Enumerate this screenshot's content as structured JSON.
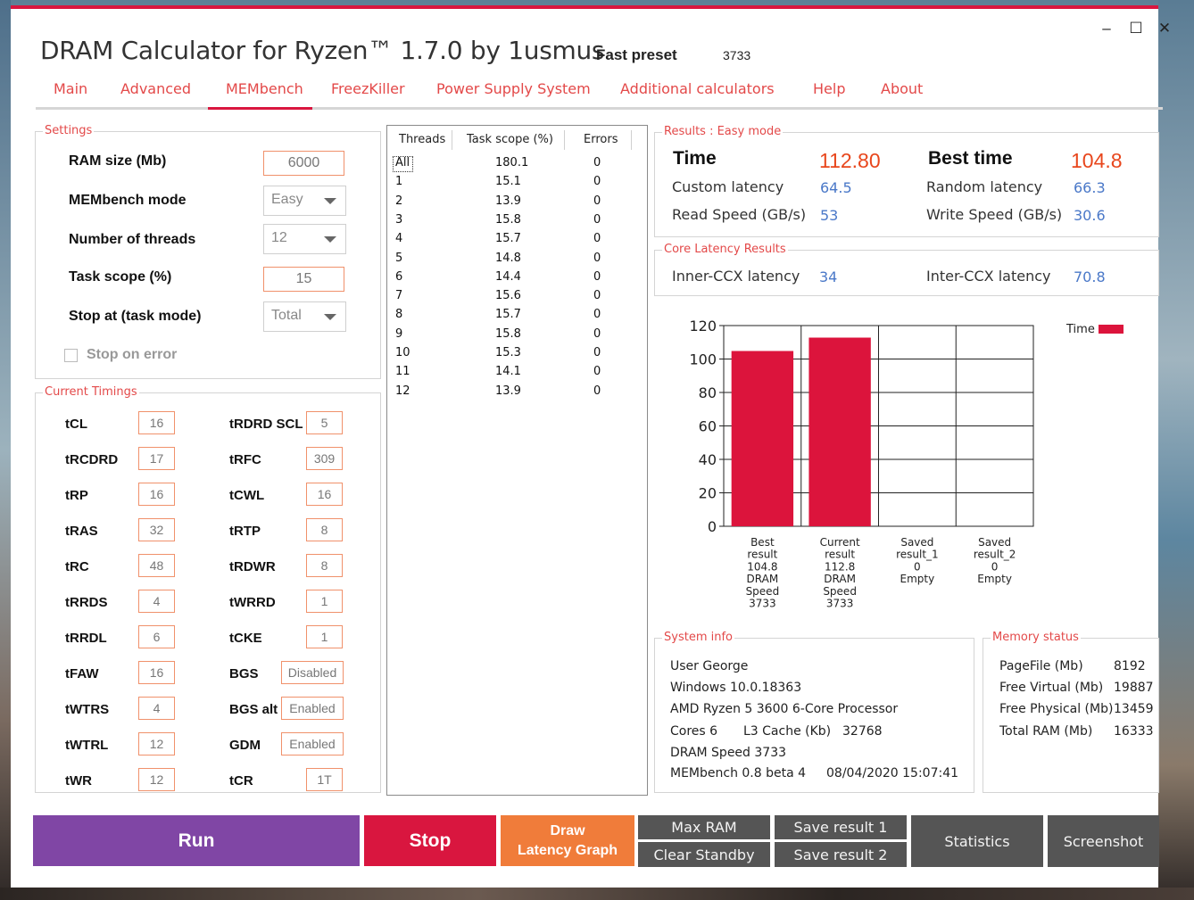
{
  "window": {
    "title": "DRAM Calculator for Ryzen™ 1.7.0 by 1usmus",
    "preset_label": "Fast preset",
    "preset_value": "3733",
    "controls": {
      "minimize": "–",
      "maximize": "☐",
      "close": "✕"
    }
  },
  "menu": [
    "Main",
    "Advanced",
    "MEMbench",
    "FreezKiller",
    "Power Supply System",
    "Additional calculators",
    "Help",
    "About"
  ],
  "menu_active": "MEMbench",
  "settings": {
    "title": "Settings",
    "ram_size_label": "RAM size (Mb)",
    "ram_size_value": "6000",
    "mode_label": "MEMbench mode",
    "mode_value": "Easy",
    "threads_label": "Number of threads",
    "threads_value": "12",
    "task_scope_label": "Task scope (%)",
    "task_scope_value": "15",
    "stop_label": "Stop at (task mode)",
    "stop_value": "Total",
    "stop_on_error_label": "Stop on error",
    "stop_on_error_checked": false
  },
  "timings": {
    "title": "Current Timings",
    "left": [
      {
        "label": "tCL",
        "value": "16"
      },
      {
        "label": "tRCDRD",
        "value": "17"
      },
      {
        "label": "tRP",
        "value": "16"
      },
      {
        "label": "tRAS",
        "value": "32"
      },
      {
        "label": "tRC",
        "value": "48"
      },
      {
        "label": "tRRDS",
        "value": "4"
      },
      {
        "label": "tRRDL",
        "value": "6"
      },
      {
        "label": "tFAW",
        "value": "16"
      },
      {
        "label": "tWTRS",
        "value": "4"
      },
      {
        "label": "tWTRL",
        "value": "12"
      },
      {
        "label": "tWR",
        "value": "12"
      }
    ],
    "right": [
      {
        "label": "tRDRD SCL",
        "value": "5"
      },
      {
        "label": "tRFC",
        "value": "309"
      },
      {
        "label": "tCWL",
        "value": "16"
      },
      {
        "label": "tRTP",
        "value": "8"
      },
      {
        "label": "tRDWR",
        "value": "8"
      },
      {
        "label": "tWRRD",
        "value": "1"
      },
      {
        "label": "tCKE",
        "value": "1"
      },
      {
        "label": "BGS",
        "value": "Disabled"
      },
      {
        "label": "BGS alt",
        "value": "Enabled"
      },
      {
        "label": "GDM",
        "value": "Enabled"
      },
      {
        "label": "tCR",
        "value": "1T"
      }
    ]
  },
  "threads_table": {
    "headers": [
      "Threads",
      "Task scope (%)",
      "Errors"
    ],
    "rows": [
      [
        "All",
        "180.1",
        "0"
      ],
      [
        "1",
        "15.1",
        "0"
      ],
      [
        "2",
        "13.9",
        "0"
      ],
      [
        "3",
        "15.8",
        "0"
      ],
      [
        "4",
        "15.7",
        "0"
      ],
      [
        "5",
        "14.8",
        "0"
      ],
      [
        "6",
        "14.4",
        "0"
      ],
      [
        "7",
        "15.6",
        "0"
      ],
      [
        "8",
        "15.7",
        "0"
      ],
      [
        "9",
        "15.8",
        "0"
      ],
      [
        "10",
        "15.3",
        "0"
      ],
      [
        "11",
        "14.1",
        "0"
      ],
      [
        "12",
        "13.9",
        "0"
      ]
    ]
  },
  "results": {
    "title": "Results : Easy mode",
    "time_label": "Time",
    "time_value": "112.80",
    "best_label": "Best time",
    "best_value": "104.8",
    "custom_latency_label": "Custom latency",
    "custom_latency_value": "64.5",
    "random_latency_label": "Random latency",
    "random_latency_value": "66.3",
    "read_label": "Read Speed (GB/s)",
    "read_value": "53",
    "write_label": "Write Speed (GB/s)",
    "write_value": "30.6"
  },
  "core_latency": {
    "title": "Core Latency Results",
    "inner_label": "Inner-CCX latency",
    "inner_value": "34",
    "inter_label": "Inter-CCX latency",
    "inter_value": "70.8"
  },
  "chart_data": {
    "type": "bar",
    "ylim": [
      0,
      120
    ],
    "yticks": [
      0,
      20,
      40,
      60,
      80,
      100,
      120
    ],
    "grid": true,
    "legend_position": "top-right",
    "series": [
      {
        "name": "Time",
        "values": [
          104.8,
          112.8,
          0,
          0
        ],
        "color": "#dc143c"
      }
    ],
    "categories": [
      [
        "Best",
        "result",
        "104.8",
        "DRAM",
        "Speed",
        "3733"
      ],
      [
        "Current",
        "result",
        "112.8",
        "DRAM",
        "Speed",
        "3733"
      ],
      [
        "Saved",
        "result_1",
        "0",
        "Empty"
      ],
      [
        "Saved",
        "result_2",
        "0",
        "Empty"
      ]
    ]
  },
  "system_info": {
    "title": "System info",
    "user": "User George",
    "os": "Windows 10.0.18363",
    "cpu": "AMD Ryzen 5 3600 6-Core Processor",
    "cores": "Cores 6",
    "l3_label": "L3 Cache (Kb)",
    "l3_value": "32768",
    "dram_speed": "DRAM Speed 3733",
    "membench": "MEMbench 0.8 beta 4",
    "datetime": "08/04/2020 15:07:41"
  },
  "memory_status": {
    "title": "Memory status",
    "rows": [
      {
        "label": "PageFile (Mb)",
        "value": "8192"
      },
      {
        "label": "Free Virtual (Mb)",
        "value": "19887"
      },
      {
        "label": "Free Physical (Mb)",
        "value": "13459"
      },
      {
        "label": "Total RAM (Mb)",
        "value": "16333"
      }
    ]
  },
  "buttons": {
    "run": "Run",
    "stop": "Stop",
    "draw_latency_line1": "Draw",
    "draw_latency_line2": "Latency Graph",
    "max_ram": "Max RAM",
    "clear_standby": "Clear Standby",
    "save_result_1": "Save result 1",
    "save_result_2": "Save result 2",
    "statistics": "Statistics",
    "screenshot": "Screenshot"
  },
  "colors": {
    "accent": "#d9163f",
    "run": "#8046a5",
    "stop": "#d9163f",
    "draw": "#f07c3a",
    "dark_button": "#555555",
    "label_red": "#e34949",
    "value_blue": "#4a78c8",
    "value_orange": "#e8461c"
  }
}
